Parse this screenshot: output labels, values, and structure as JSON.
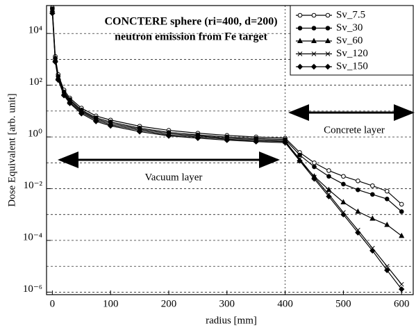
{
  "chart_data": {
    "type": "line",
    "title": [
      "CONCTERE sphere (ri=400, d=200)",
      "neutron emission from Fe target"
    ],
    "xlabel": "radius [mm]",
    "ylabel": "Dose Equivalent [arb. unit]",
    "annotations": [
      "Concrete layer",
      "Vacuum layer"
    ],
    "log_y": true,
    "grid": true,
    "grid_style": "dashed",
    "legend": "upper right",
    "xlim": [
      -10,
      620
    ],
    "ylim": [
      8e-07,
      120000
    ],
    "xticks": [
      0,
      100,
      200,
      300,
      400,
      500,
      600
    ],
    "yticks": [
      {
        "value": 1e-06,
        "label": "10⁻⁶"
      },
      {
        "value": 0.0001,
        "label": "10⁻⁴"
      },
      {
        "value": 0.01,
        "label": "10⁻²"
      },
      {
        "value": 1,
        "label": "10⁰"
      },
      {
        "value": 100,
        "label": "10²"
      },
      {
        "value": 10000,
        "label": "10⁴"
      }
    ],
    "minor_yticks": [
      1e-05,
      0.001,
      0.1,
      10,
      1000
    ],
    "xgrid": [
      400
    ],
    "x": [
      0,
      5,
      10,
      20,
      30,
      50,
      75,
      100,
      150,
      200,
      250,
      300,
      350,
      400,
      425,
      450,
      475,
      500,
      525,
      550,
      575,
      600
    ],
    "series": [
      {
        "name": "Sv_7.5",
        "color": "#000000",
        "marker": "open-circle",
        "values": [
          100000,
          1300,
          260,
          65,
          32,
          13,
          6.5,
          4.5,
          2.6,
          1.8,
          1.4,
          1.15,
          1.0,
          0.9,
          0.25,
          0.1,
          0.05,
          0.03,
          0.02,
          0.013,
          0.008,
          0.0025
        ]
      },
      {
        "name": "Sv_30",
        "color": "#000000",
        "marker": "filled-circle",
        "values": [
          90000,
          1100,
          220,
          55,
          28,
          11,
          5.5,
          3.8,
          2.2,
          1.5,
          1.2,
          1.0,
          0.88,
          0.8,
          0.2,
          0.07,
          0.03,
          0.015,
          0.009,
          0.006,
          0.004,
          0.0013
        ]
      },
      {
        "name": "Sv_60",
        "color": "#000000",
        "marker": "triangle",
        "values": [
          80000,
          1000,
          200,
          50,
          25,
          10,
          5,
          3.4,
          2.0,
          1.35,
          1.1,
          0.9,
          0.8,
          0.72,
          0.12,
          0.03,
          0.009,
          0.003,
          0.0013,
          0.0007,
          0.0004,
          0.00015
        ]
      },
      {
        "name": "Sv_120",
        "color": "#000000",
        "marker": "cross",
        "values": [
          70000,
          900,
          180,
          45,
          22,
          9,
          4.5,
          3.0,
          1.8,
          1.2,
          1.0,
          0.82,
          0.72,
          0.66,
          0.14,
          0.028,
          0.006,
          0.0012,
          0.00025,
          5e-05,
          1e-05,
          2e-06
        ]
      },
      {
        "name": "Sv_150",
        "color": "#000000",
        "marker": "diamond",
        "values": [
          60000,
          800,
          160,
          40,
          20,
          8,
          4,
          2.7,
          1.6,
          1.1,
          0.9,
          0.75,
          0.66,
          0.6,
          0.12,
          0.024,
          0.005,
          0.001,
          0.0002,
          4e-05,
          7e-06,
          1.3e-06
        ]
      }
    ]
  }
}
